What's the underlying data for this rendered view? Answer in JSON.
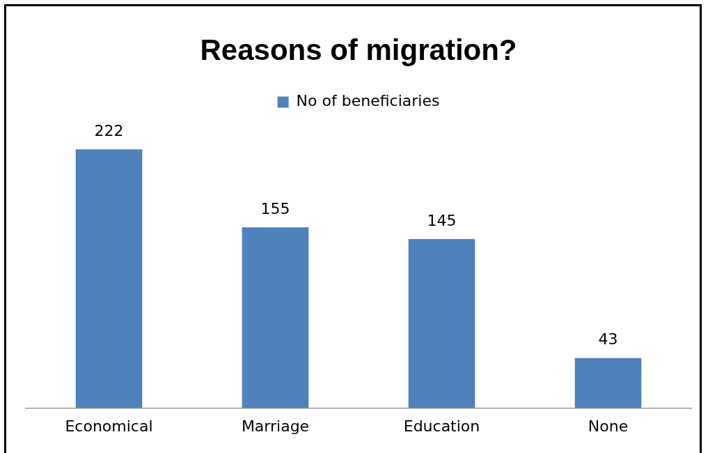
{
  "chart_data": {
    "type": "bar",
    "title": "Reasons of migration?",
    "categories": [
      "Economical",
      "Marriage",
      "Education",
      "None"
    ],
    "series": [
      {
        "name": "No of beneficiaries",
        "color": "#4f81bd",
        "values": [
          222,
          155,
          145,
          43
        ]
      }
    ],
    "tick_labels": "x",
    "data_labels": true,
    "legend": "top",
    "grid": false
  }
}
